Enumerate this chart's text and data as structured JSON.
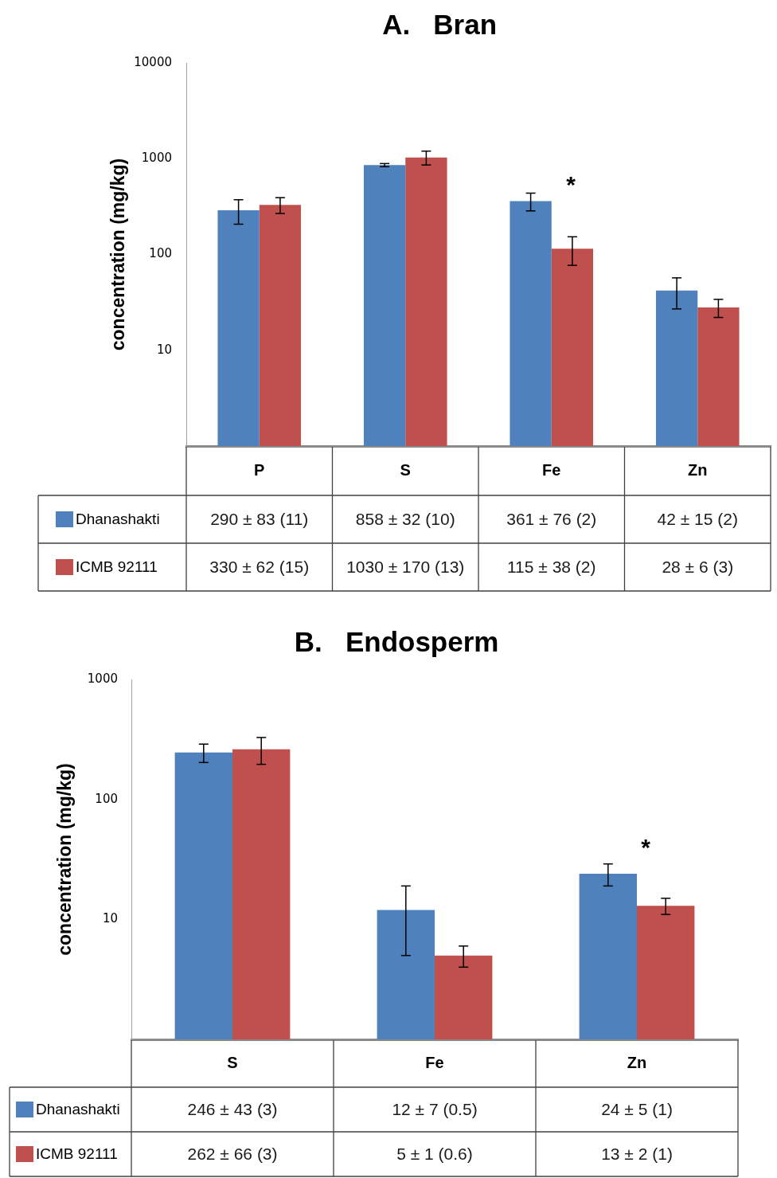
{
  "chart_data": [
    {
      "type": "bar",
      "title": "A.   Bran",
      "ylabel": "concentration (mg/kg)",
      "categories": [
        "P",
        "S",
        "Fe",
        "Zn"
      ],
      "series": [
        {
          "name": "Dhanashakti",
          "color": "#4f81bd",
          "values": [
            290,
            858,
            361,
            42
          ],
          "errors": [
            83,
            32,
            76,
            15
          ],
          "value_labels": [
            "290 ± 83 (11)",
            "858 ± 32 (10)",
            "361 ± 76 (2)",
            "42 ± 15 (2)"
          ]
        },
        {
          "name": "ICMB 92111",
          "color": "#c0504d",
          "values": [
            330,
            1030,
            115,
            28
          ],
          "errors": [
            62,
            170,
            38,
            6
          ],
          "value_labels": [
            "330 ± 62 (15)",
            "1030 ± 170 (13)",
            "115 ± 38 (2)",
            "28 ± 6 (3)"
          ]
        }
      ],
      "log": true,
      "ylim": [
        1,
        10000
      ],
      "yticks": [
        10,
        100,
        1000,
        10000
      ],
      "legend": "bottom left",
      "annotations": [
        "*"
      ]
    },
    {
      "type": "bar",
      "title": "B.   Endosperm",
      "ylabel": "concentration (mg/kg)",
      "categories": [
        "S",
        "Fe",
        "Zn"
      ],
      "series": [
        {
          "name": "Dhanashakti",
          "color": "#4f81bd",
          "values": [
            246,
            12,
            24
          ],
          "errors": [
            43,
            7,
            5
          ],
          "value_labels": [
            "246 ± 43 (3)",
            "12 ± 7 (0.5)",
            "24 ± 5 (1)"
          ]
        },
        {
          "name": "ICMB 92111",
          "color": "#c0504d",
          "values": [
            262,
            5,
            13
          ],
          "errors": [
            66,
            1,
            2
          ],
          "value_labels": [
            "262 ± 66 (3)",
            "5 ± 1 (0.6)",
            "13 ± 2 (1)"
          ]
        }
      ],
      "log": true,
      "ylim": [
        1,
        1000
      ],
      "yticks": [
        10,
        100,
        1000
      ],
      "legend": "bottom left",
      "annotations": [
        "*"
      ]
    }
  ]
}
